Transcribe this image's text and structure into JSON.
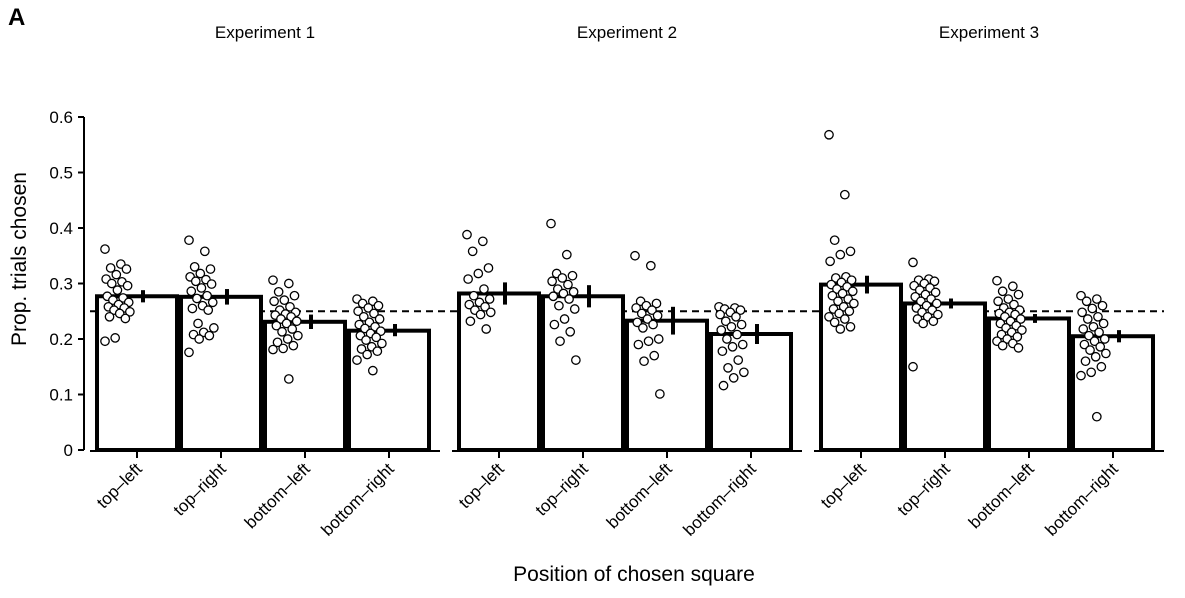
{
  "panel_label": "A",
  "xlabel": "Position of chosen square",
  "ylabel": "Prop. trials chosen",
  "yticks": [
    "0",
    "0.1",
    "0.2",
    "0.3",
    "0.4",
    "0.5",
    "0.6"
  ],
  "reference_line": {
    "y": 0.25,
    "style": "dashed"
  },
  "chart_data": [
    {
      "type": "bar",
      "title": "Experiment 1",
      "categories": [
        "top–left",
        "top–right",
        "bottom–left",
        "bottom–right"
      ],
      "values": [
        0.277,
        0.276,
        0.231,
        0.215
      ],
      "error": [
        [
          0.266,
          0.288
        ],
        [
          0.262,
          0.29
        ],
        [
          0.218,
          0.244
        ],
        [
          0.205,
          0.227
        ]
      ],
      "points": [
        [
          0.362,
          0.335,
          0.328,
          0.326,
          0.316,
          0.308,
          0.303,
          0.3,
          0.296,
          0.288,
          0.277,
          0.274,
          0.27,
          0.266,
          0.262,
          0.258,
          0.256,
          0.252,
          0.249,
          0.246,
          0.24,
          0.237,
          0.202,
          0.196
        ],
        [
          0.378,
          0.358,
          0.33,
          0.326,
          0.318,
          0.312,
          0.307,
          0.304,
          0.299,
          0.292,
          0.286,
          0.278,
          0.273,
          0.266,
          0.26,
          0.255,
          0.252,
          0.228,
          0.22,
          0.212,
          0.208,
          0.206,
          0.2,
          0.176
        ],
        [
          0.306,
          0.3,
          0.285,
          0.278,
          0.27,
          0.268,
          0.258,
          0.252,
          0.248,
          0.245,
          0.243,
          0.24,
          0.236,
          0.232,
          0.228,
          0.224,
          0.218,
          0.213,
          0.206,
          0.2,
          0.194,
          0.188,
          0.183,
          0.181,
          0.128
        ],
        [
          0.272,
          0.268,
          0.264,
          0.26,
          0.256,
          0.25,
          0.246,
          0.24,
          0.236,
          0.23,
          0.226,
          0.222,
          0.219,
          0.214,
          0.21,
          0.206,
          0.203,
          0.198,
          0.192,
          0.186,
          0.182,
          0.178,
          0.172,
          0.162,
          0.143
        ]
      ],
      "ylim": [
        0,
        0.6
      ]
    },
    {
      "type": "bar",
      "title": "Experiment 2",
      "categories": [
        "top–left",
        "top–right",
        "bottom–left",
        "bottom–right"
      ],
      "values": [
        0.282,
        0.277,
        0.233,
        0.209
      ],
      "error": [
        [
          0.262,
          0.302
        ],
        [
          0.257,
          0.297
        ],
        [
          0.208,
          0.258
        ],
        [
          0.191,
          0.227
        ]
      ],
      "points": [
        [
          0.388,
          0.376,
          0.358,
          0.328,
          0.318,
          0.308,
          0.29,
          0.278,
          0.272,
          0.266,
          0.262,
          0.258,
          0.252,
          0.248,
          0.244,
          0.232,
          0.218
        ],
        [
          0.408,
          0.352,
          0.318,
          0.314,
          0.31,
          0.304,
          0.298,
          0.29,
          0.285,
          0.282,
          0.277,
          0.272,
          0.26,
          0.254,
          0.236,
          0.226,
          0.213,
          0.196,
          0.162
        ],
        [
          0.35,
          0.332,
          0.268,
          0.264,
          0.26,
          0.256,
          0.252,
          0.246,
          0.242,
          0.236,
          0.23,
          0.226,
          0.22,
          0.2,
          0.196,
          0.19,
          0.17,
          0.16,
          0.101
        ],
        [
          0.258,
          0.256,
          0.254,
          0.252,
          0.248,
          0.244,
          0.24,
          0.232,
          0.226,
          0.222,
          0.216,
          0.208,
          0.2,
          0.19,
          0.186,
          0.178,
          0.162,
          0.148,
          0.14,
          0.13,
          0.116
        ]
      ],
      "ylim": [
        0,
        0.6
      ]
    },
    {
      "type": "bar",
      "title": "Experiment 3",
      "categories": [
        "top–left",
        "top–right",
        "bottom–left",
        "bottom–right"
      ],
      "values": [
        0.298,
        0.264,
        0.237,
        0.205
      ],
      "error": [
        [
          0.282,
          0.314
        ],
        [
          0.255,
          0.273
        ],
        [
          0.229,
          0.245
        ],
        [
          0.194,
          0.216
        ]
      ],
      "points": [
        [
          0.568,
          0.46,
          0.378,
          0.358,
          0.352,
          0.34,
          0.312,
          0.31,
          0.306,
          0.302,
          0.298,
          0.294,
          0.29,
          0.286,
          0.282,
          0.278,
          0.272,
          0.268,
          0.264,
          0.258,
          0.254,
          0.25,
          0.246,
          0.24,
          0.236,
          0.23,
          0.222,
          0.218
        ],
        [
          0.338,
          0.308,
          0.306,
          0.304,
          0.3,
          0.296,
          0.292,
          0.288,
          0.284,
          0.28,
          0.276,
          0.272,
          0.268,
          0.264,
          0.26,
          0.256,
          0.252,
          0.248,
          0.244,
          0.24,
          0.236,
          0.232,
          0.228,
          0.15
        ],
        [
          0.305,
          0.295,
          0.286,
          0.28,
          0.272,
          0.268,
          0.262,
          0.256,
          0.252,
          0.248,
          0.246,
          0.244,
          0.24,
          0.236,
          0.232,
          0.228,
          0.224,
          0.22,
          0.216,
          0.212,
          0.208,
          0.204,
          0.2,
          0.196,
          0.192,
          0.188,
          0.184
        ],
        [
          0.278,
          0.272,
          0.268,
          0.26,
          0.255,
          0.248,
          0.24,
          0.236,
          0.228,
          0.222,
          0.218,
          0.212,
          0.206,
          0.2,
          0.196,
          0.19,
          0.186,
          0.18,
          0.174,
          0.168,
          0.16,
          0.15,
          0.14,
          0.134,
          0.06
        ]
      ],
      "ylim": [
        0,
        0.6
      ]
    }
  ]
}
